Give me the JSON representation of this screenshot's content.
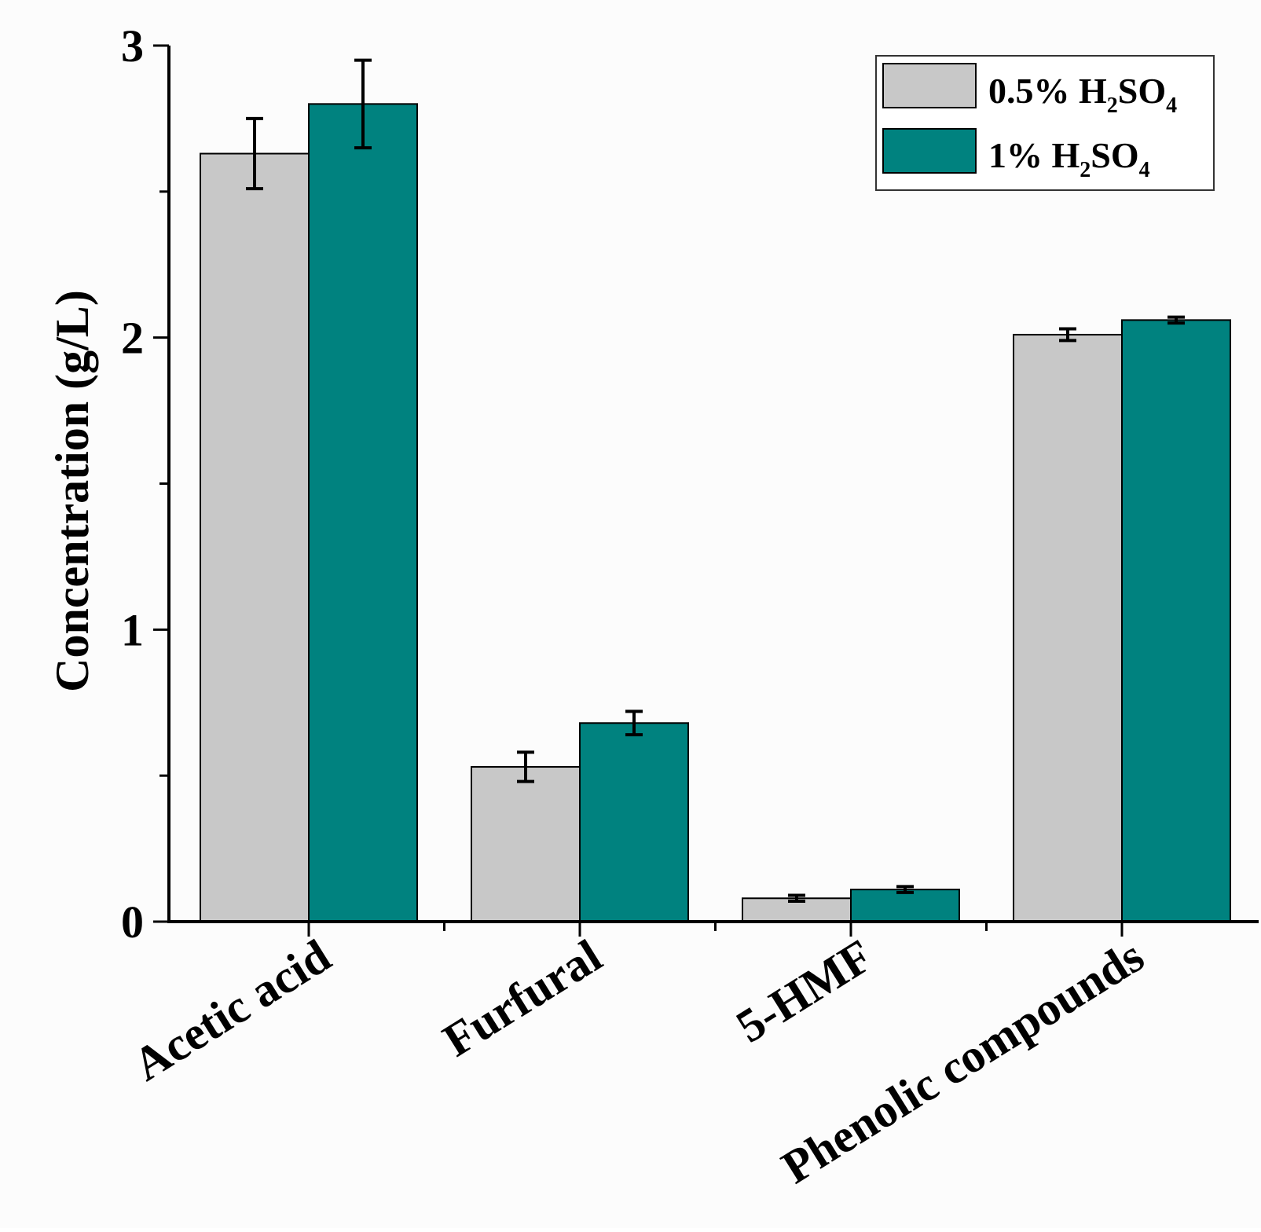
{
  "chart_data": {
    "type": "bar",
    "title": "",
    "xlabel": "",
    "ylabel": "Concentration (g/L)",
    "ylim": [
      0,
      3
    ],
    "yticks": [
      "0",
      "1",
      "2",
      "3"
    ],
    "categories": [
      "Acetic acid",
      "Furfural",
      "5-HMF",
      "Phenolic compounds"
    ],
    "series": [
      {
        "name": "0.5% H2SO4",
        "legend": {
          "pre": "0.5% H",
          "sub1": "2",
          "mid": "SO",
          "sub2": "4"
        },
        "color": "#c8c8c8",
        "values": [
          2.63,
          0.53,
          0.08,
          2.01
        ],
        "errors": [
          0.12,
          0.05,
          0.01,
          0.02
        ]
      },
      {
        "name": "1% H2SO4",
        "legend": {
          "pre": "1% H",
          "sub1": "2",
          "mid": "SO",
          "sub2": "4"
        },
        "color": "#00827f",
        "values": [
          2.8,
          0.68,
          0.11,
          2.06
        ],
        "errors": [
          0.15,
          0.04,
          0.01,
          0.01
        ]
      }
    ],
    "grid": false,
    "legend_position": "top-right"
  }
}
